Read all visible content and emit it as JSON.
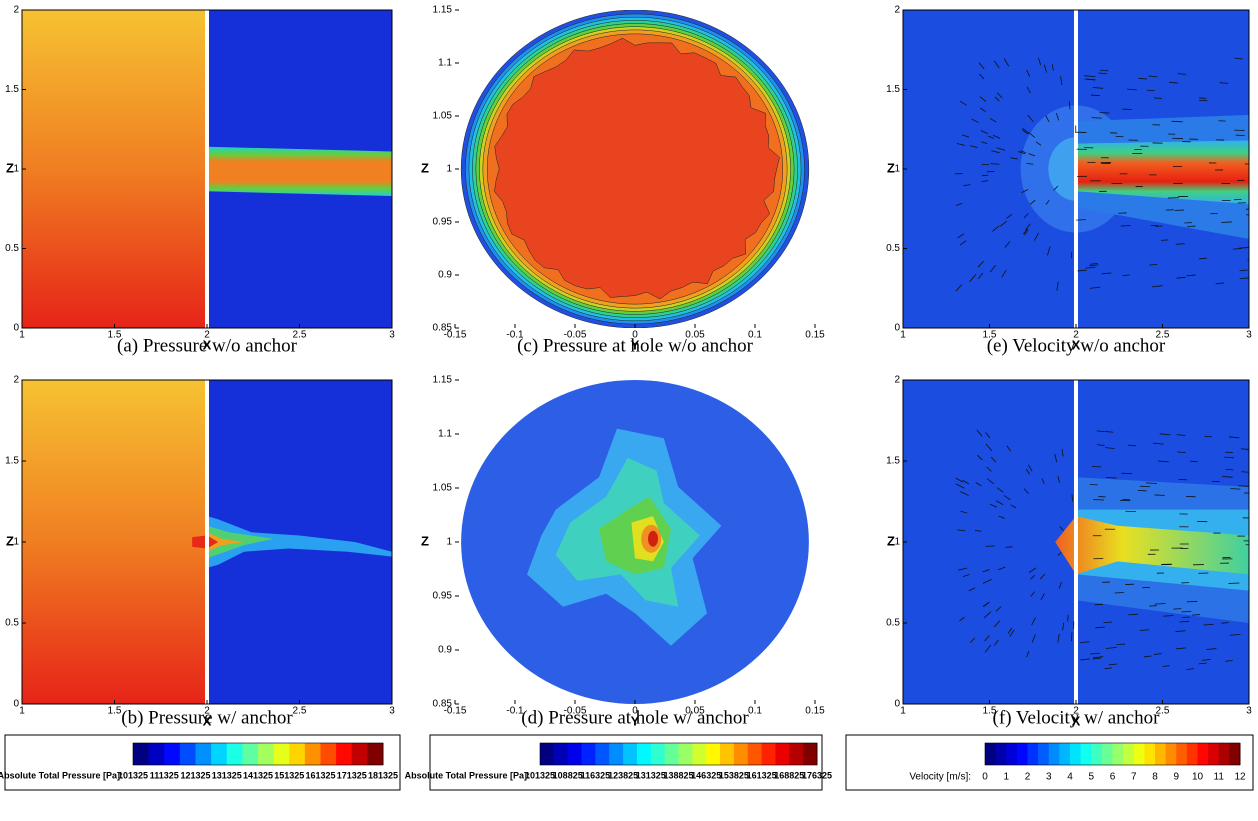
{
  "panels": [
    {
      "caption": "(a)  Pressure  w/o  anchor",
      "x_label": "X",
      "y_label": "Z",
      "x_ticks": [
        "1",
        "1.5",
        "2",
        "2.5",
        "3"
      ],
      "y_ticks": [
        "0",
        "0.5",
        "1",
        "1.5",
        "2"
      ]
    },
    {
      "caption": "(c)  Pressure  at  hole  w/o  anchor",
      "x_label": "Y",
      "y_label": "Z",
      "x_ticks": [
        "-0.15",
        "-0.1",
        "-0.05",
        "0",
        "0.05",
        "0.1",
        "0.15"
      ],
      "y_ticks": [
        "0.85",
        "0.9",
        "0.95",
        "1",
        "1.05",
        "1.1",
        "1.15"
      ]
    },
    {
      "caption": "(e)  Velocity  w/o  anchor",
      "x_label": "X",
      "y_label": "Z",
      "x_ticks": [
        "1",
        "1.5",
        "2",
        "2.5",
        "3"
      ],
      "y_ticks": [
        "0",
        "0.5",
        "1",
        "1.5",
        "2"
      ]
    },
    {
      "caption": "(b)  Pressure  w/  anchor",
      "x_label": "X",
      "y_label": "Z",
      "x_ticks": [
        "1",
        "1.5",
        "2",
        "2.5",
        "3"
      ],
      "y_ticks": [
        "0",
        "0.5",
        "1",
        "1.5",
        "2"
      ]
    },
    {
      "caption": "(d)  Pressure  at  hole  w/  anchor",
      "x_label": "Y",
      "y_label": "Z",
      "x_ticks": [
        "-0.15",
        "-0.1",
        "-0.05",
        "0",
        "0.05",
        "0.1",
        "0.15"
      ],
      "y_ticks": [
        "0.85",
        "0.9",
        "0.95",
        "1",
        "1.05",
        "1.1",
        "1.15"
      ]
    },
    {
      "caption": "(f)  Velocity  w/  anchor",
      "x_label": "X",
      "y_label": "Z",
      "x_ticks": [
        "1",
        "1.5",
        "2",
        "2.5",
        "3"
      ],
      "y_ticks": [
        "0",
        "0.5",
        "1",
        "1.5",
        "2"
      ]
    }
  ],
  "colorbars": [
    {
      "label": "Absolute Total Pressure [Pa]:",
      "ticks": [
        "101325",
        "111325",
        "121325",
        "131325",
        "141325",
        "151325",
        "161325",
        "171325",
        "181325"
      ]
    },
    {
      "label": "Absolute Total Pressure [Pa]:",
      "ticks": [
        "101325",
        "108825",
        "116325",
        "123825",
        "131325",
        "138825",
        "146325",
        "153825",
        "161325",
        "168825",
        "176325"
      ]
    },
    {
      "label": "Velocity [m/s]:",
      "ticks": [
        "0",
        "1",
        "2",
        "3",
        "4",
        "5",
        "6",
        "7",
        "8",
        "9",
        "10",
        "11",
        "12"
      ]
    }
  ]
}
